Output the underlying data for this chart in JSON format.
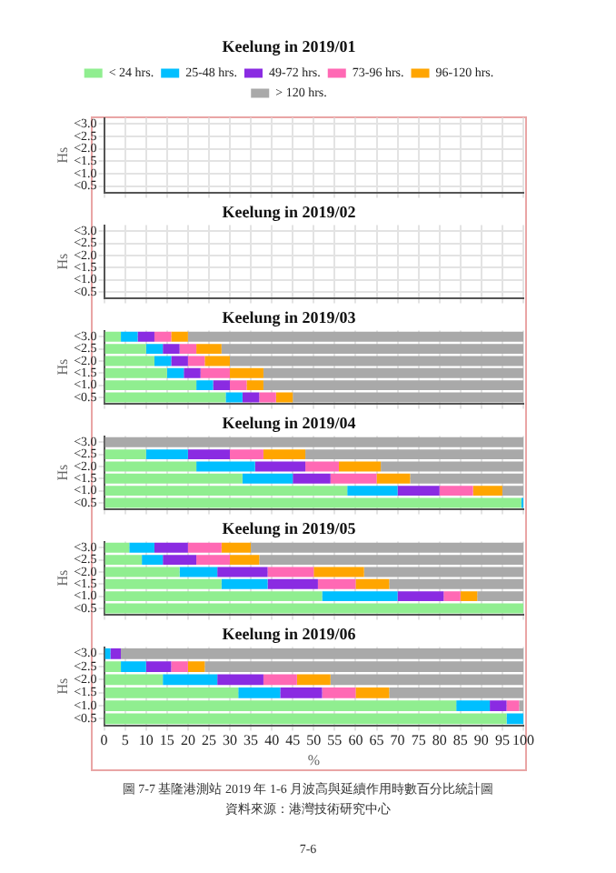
{
  "chart_data": [
    {
      "type": "bar",
      "orientation": "horizontal",
      "stacked": true,
      "title": "Keelung in 2019/01",
      "ylabel": "Hs",
      "categories": [
        "<3.0",
        "<2.5",
        "<2.0",
        "<1.5",
        "<1.0",
        "<0.5"
      ],
      "xlim": [
        0,
        100
      ],
      "xticks": [
        0,
        5,
        10,
        15,
        20,
        25,
        30,
        35,
        40,
        45,
        50,
        55,
        60,
        65,
        70,
        75,
        80,
        85,
        90,
        95,
        100
      ],
      "grid": true,
      "tick_labels": "y",
      "legend": "top",
      "series": [
        {
          "name": "< 24 hrs.",
          "color": "#90ee90",
          "values": [
            null,
            null,
            null,
            null,
            null,
            null
          ]
        },
        {
          "name": "25-48 hrs.",
          "color": "#00bfff",
          "values": [
            null,
            null,
            null,
            null,
            null,
            null
          ]
        },
        {
          "name": "49-72 hrs.",
          "color": "#8a2be2",
          "values": [
            null,
            null,
            null,
            null,
            null,
            null
          ]
        },
        {
          "name": "73-96 hrs.",
          "color": "#ff69b4",
          "values": [
            null,
            null,
            null,
            null,
            null,
            null
          ]
        },
        {
          "name": "96-120 hrs.",
          "color": "#ffa500",
          "values": [
            null,
            null,
            null,
            null,
            null,
            null
          ]
        },
        {
          "name": "> 120 hrs.",
          "color": "#a9a9a9",
          "values": [
            null,
            null,
            null,
            null,
            null,
            null
          ]
        }
      ]
    },
    {
      "type": "bar",
      "orientation": "horizontal",
      "stacked": true,
      "title": "Keelung in 2019/02",
      "ylabel": "Hs",
      "categories": [
        "<3.0",
        "<2.5",
        "<2.0",
        "<1.5",
        "<1.0",
        "<0.5"
      ],
      "xlim": [
        0,
        100
      ],
      "xticks": [
        0,
        5,
        10,
        15,
        20,
        25,
        30,
        35,
        40,
        45,
        50,
        55,
        60,
        65,
        70,
        75,
        80,
        85,
        90,
        95,
        100
      ],
      "grid": true,
      "tick_labels": "y",
      "series": [
        {
          "color": "#90ee90",
          "values": [
            null,
            null,
            null,
            null,
            null,
            null
          ]
        },
        {
          "color": "#00bfff",
          "values": [
            null,
            null,
            null,
            null,
            null,
            null
          ]
        },
        {
          "color": "#8a2be2",
          "values": [
            null,
            null,
            null,
            null,
            null,
            null
          ]
        },
        {
          "color": "#ff69b4",
          "values": [
            null,
            null,
            null,
            null,
            null,
            null
          ]
        },
        {
          "color": "#ffa500",
          "values": [
            null,
            null,
            null,
            null,
            null,
            null
          ]
        },
        {
          "color": "#a9a9a9",
          "values": [
            null,
            null,
            null,
            null,
            null,
            null
          ]
        }
      ]
    },
    {
      "type": "bar",
      "orientation": "horizontal",
      "stacked": true,
      "title": "Keelung in 2019/03",
      "ylabel": "Hs",
      "categories": [
        "<3.0",
        "<2.5",
        "<2.0",
        "<1.5",
        "<1.0",
        "<0.5"
      ],
      "xlim": [
        0,
        100
      ],
      "xticks": [
        0,
        5,
        10,
        15,
        20,
        25,
        30,
        35,
        40,
        45,
        50,
        55,
        60,
        65,
        70,
        75,
        80,
        85,
        90,
        95,
        100
      ],
      "grid": true,
      "tick_labels": "y",
      "series": [
        {
          "color": "#90ee90",
          "values": [
            4,
            10,
            12,
            15,
            22,
            29
          ]
        },
        {
          "color": "#00bfff",
          "values": [
            4,
            4,
            4,
            4,
            4,
            4
          ]
        },
        {
          "color": "#8a2be2",
          "values": [
            4,
            4,
            4,
            4,
            4,
            4
          ]
        },
        {
          "color": "#ff69b4",
          "values": [
            4,
            4,
            4,
            7,
            4,
            4
          ]
        },
        {
          "color": "#ffa500",
          "values": [
            4,
            6,
            6,
            8,
            4,
            4
          ]
        },
        {
          "color": "#a9a9a9",
          "values": [
            80,
            72,
            70,
            62,
            62,
            55
          ]
        }
      ]
    },
    {
      "type": "bar",
      "orientation": "horizontal",
      "stacked": true,
      "title": "Keelung in 2019/04",
      "ylabel": "Hs",
      "categories": [
        "<3.0",
        "<2.5",
        "<2.0",
        "<1.5",
        "<1.0",
        "<0.5"
      ],
      "xlim": [
        0,
        100
      ],
      "xticks": [
        0,
        5,
        10,
        15,
        20,
        25,
        30,
        35,
        40,
        45,
        50,
        55,
        60,
        65,
        70,
        75,
        80,
        85,
        90,
        95,
        100
      ],
      "grid": true,
      "tick_labels": "y",
      "series": [
        {
          "color": "#90ee90",
          "values": [
            0,
            10,
            22,
            33,
            58,
            99.5
          ]
        },
        {
          "color": "#00bfff",
          "values": [
            0,
            10,
            14,
            12,
            12,
            0.5
          ]
        },
        {
          "color": "#8a2be2",
          "values": [
            0,
            10,
            12,
            9,
            10,
            0
          ]
        },
        {
          "color": "#ff69b4",
          "values": [
            0,
            8,
            8,
            11,
            8,
            0
          ]
        },
        {
          "color": "#ffa500",
          "values": [
            0,
            10,
            10,
            8,
            7,
            0
          ]
        },
        {
          "color": "#a9a9a9",
          "values": [
            100,
            52,
            34,
            27,
            5,
            0
          ]
        }
      ]
    },
    {
      "type": "bar",
      "orientation": "horizontal",
      "stacked": true,
      "title": "Keelung in 2019/05",
      "ylabel": "Hs",
      "categories": [
        "<3.0",
        "<2.5",
        "<2.0",
        "<1.5",
        "<1.0",
        "<0.5"
      ],
      "xlim": [
        0,
        100
      ],
      "xticks": [
        0,
        5,
        10,
        15,
        20,
        25,
        30,
        35,
        40,
        45,
        50,
        55,
        60,
        65,
        70,
        75,
        80,
        85,
        90,
        95,
        100
      ],
      "grid": true,
      "tick_labels": "y",
      "series": [
        {
          "color": "#90ee90",
          "values": [
            6,
            9,
            18,
            28,
            52,
            100
          ]
        },
        {
          "color": "#00bfff",
          "values": [
            6,
            5,
            9,
            11,
            18,
            0
          ]
        },
        {
          "color": "#8a2be2",
          "values": [
            8,
            8,
            12,
            12,
            11,
            0
          ]
        },
        {
          "color": "#ff69b4",
          "values": [
            8,
            8,
            11,
            9,
            4,
            0
          ]
        },
        {
          "color": "#ffa500",
          "values": [
            7,
            7,
            12,
            8,
            4,
            0
          ]
        },
        {
          "color": "#a9a9a9",
          "values": [
            65,
            63,
            38,
            32,
            11,
            0
          ]
        }
      ]
    },
    {
      "type": "bar",
      "orientation": "horizontal",
      "stacked": true,
      "title": "Keelung in 2019/06",
      "ylabel": "Hs",
      "xlabel": "%",
      "categories": [
        "<3.0",
        "<2.5",
        "<2.0",
        "<1.5",
        "<1.0",
        "<0.5"
      ],
      "xlim": [
        0,
        100
      ],
      "xticks": [
        0,
        5,
        10,
        15,
        20,
        25,
        30,
        35,
        40,
        45,
        50,
        55,
        60,
        65,
        70,
        75,
        80,
        85,
        90,
        95,
        100
      ],
      "grid": true,
      "annotations": [
        "圖 7-7 基隆港測站 2019 年 1-6 月波高與延續作用時數百分比統計圖",
        "資料來源：港灣技術研究中心",
        "7-6"
      ],
      "series": [
        {
          "color": "#90ee90",
          "values": [
            0,
            4,
            14,
            32,
            84,
            96
          ]
        },
        {
          "color": "#00bfff",
          "values": [
            1.5,
            6,
            13,
            10,
            8,
            4
          ]
        },
        {
          "color": "#8a2be2",
          "values": [
            2.5,
            6,
            11,
            10,
            4,
            0
          ]
        },
        {
          "color": "#ff69b4",
          "values": [
            0,
            4,
            8,
            8,
            3,
            0
          ]
        },
        {
          "color": "#ffa500",
          "values": [
            0,
            4,
            8,
            8,
            0,
            0
          ]
        },
        {
          "color": "#a9a9a9",
          "values": [
            96,
            76,
            46,
            32,
            1,
            0
          ]
        }
      ]
    }
  ]
}
